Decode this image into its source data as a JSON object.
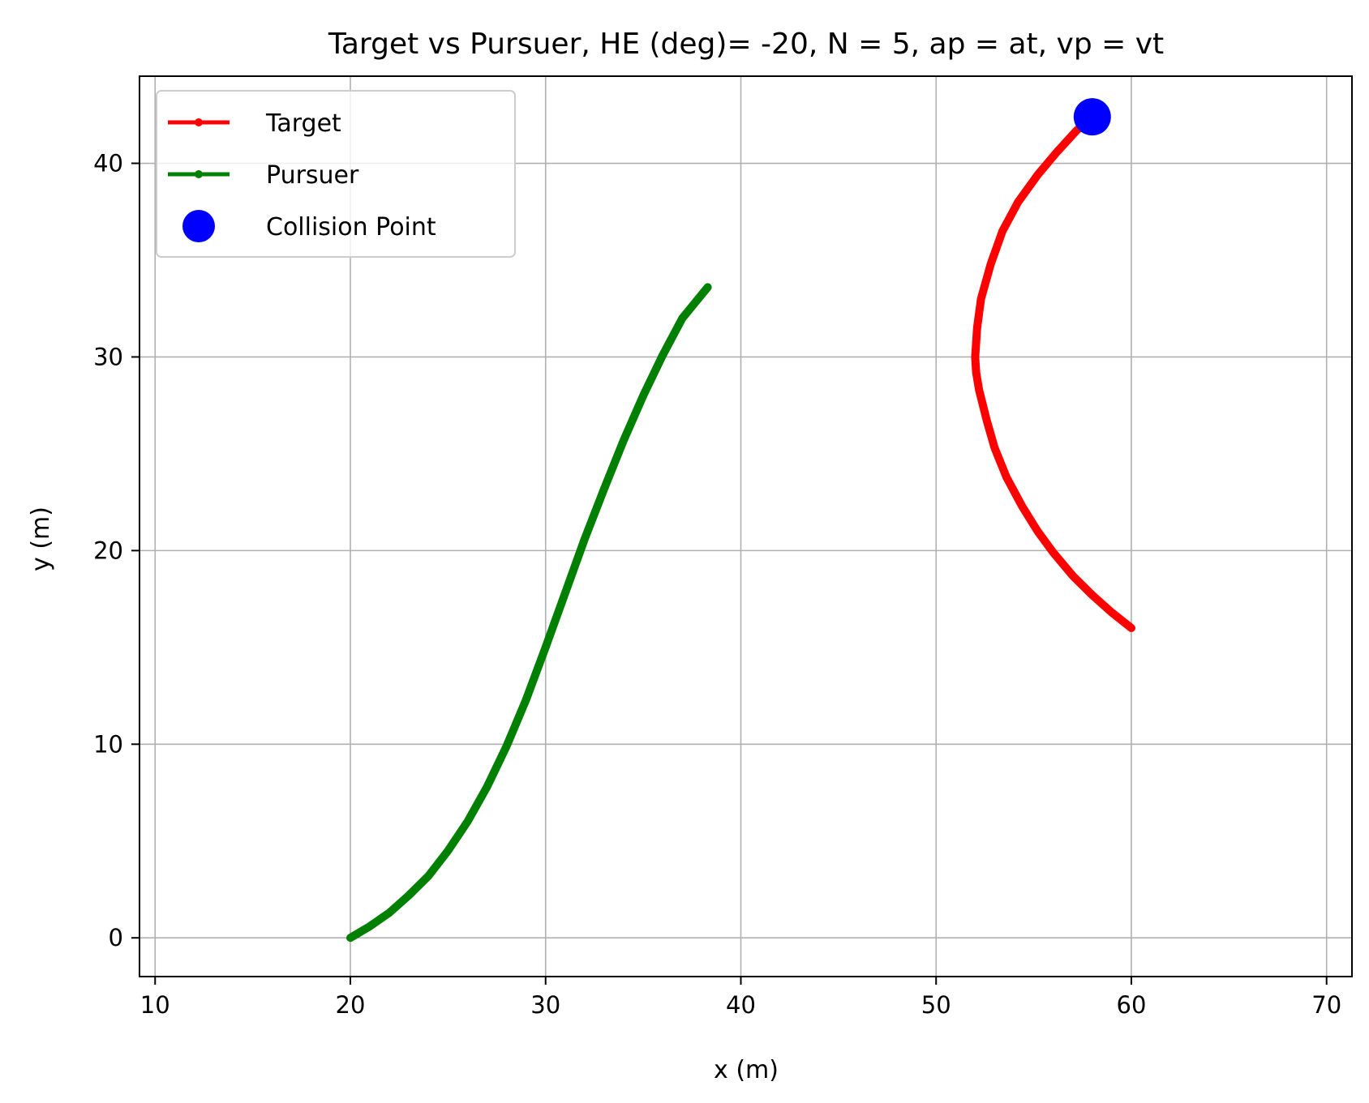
{
  "chart_data": {
    "type": "line",
    "title": "Target vs Pursuer, HE (deg)= -20, N = 5, ap = at, vp = vt",
    "xlabel": "x (m)",
    "ylabel": "y (m)",
    "xlim": [
      9.2,
      71.3
    ],
    "ylim": [
      -2,
      44.5
    ],
    "xticks": [
      10,
      20,
      30,
      40,
      50,
      60,
      70
    ],
    "yticks": [
      0,
      10,
      20,
      30,
      40
    ],
    "grid": true,
    "legend_position": "upper-left",
    "series": [
      {
        "name": "Target",
        "color": "#ff0000",
        "x": [
          60.0,
          59.0,
          58.0,
          57.0,
          56.0,
          55.2,
          54.4,
          53.6,
          53.0,
          52.6,
          52.2,
          52.05,
          52.0,
          52.1,
          52.3,
          52.8,
          53.4,
          54.2,
          55.2,
          56.2,
          57.2,
          58.0
        ],
        "y": [
          16.0,
          16.8,
          17.7,
          18.7,
          19.9,
          21.0,
          22.3,
          23.8,
          25.3,
          26.7,
          28.3,
          29.2,
          30.0,
          31.5,
          33.0,
          34.8,
          36.5,
          38.0,
          39.4,
          40.6,
          41.7,
          42.4
        ]
      },
      {
        "name": "Pursuer",
        "color": "#008000",
        "x": [
          20.0,
          21.0,
          22.0,
          23.0,
          24.0,
          25.0,
          26.0,
          27.0,
          28.0,
          29.0,
          30.0,
          31.0,
          32.0,
          33.0,
          34.0,
          35.0,
          36.0,
          37.0,
          38.3
        ],
        "y": [
          0.0,
          0.6,
          1.3,
          2.2,
          3.2,
          4.5,
          6.0,
          7.8,
          9.9,
          12.3,
          15.0,
          17.8,
          20.6,
          23.2,
          25.7,
          28.0,
          30.1,
          32.0,
          33.6
        ]
      }
    ],
    "markers": [
      {
        "name": "Collision Point",
        "color": "#0000ff",
        "x": 58.0,
        "y": 42.4
      }
    ]
  }
}
